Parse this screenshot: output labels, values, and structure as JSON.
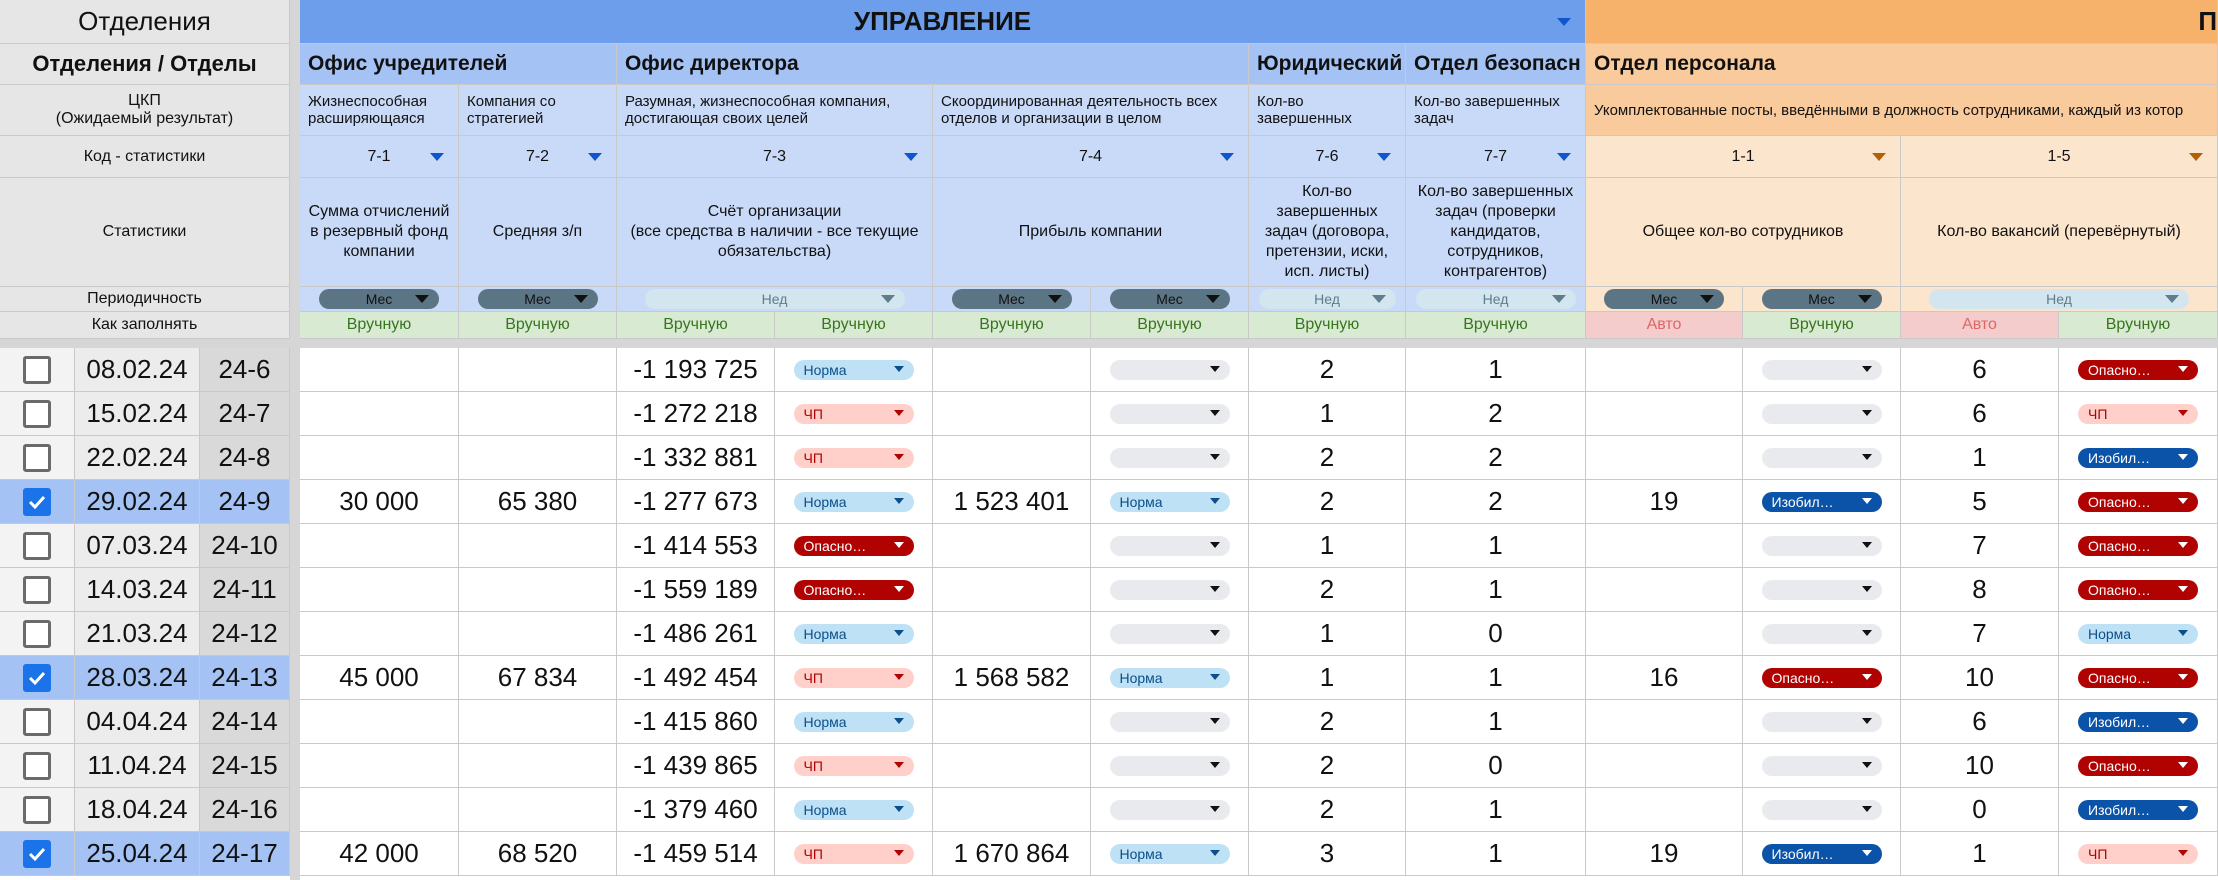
{
  "rowHeader": {
    "top": "Отделения",
    "depts": "Отделения / Отделы",
    "ckp": "ЦКП\n(Ожидаемый результат)",
    "code": "Код - статистики",
    "stats": "Статистики",
    "period": "Периодичность",
    "fill": "Как заполнять"
  },
  "banners": {
    "upravlenie": "УПРАВЛЕНИЕ",
    "next": "П"
  },
  "departments": {
    "office_founders": "Офис учредителей",
    "office_director": "Офис директора",
    "legal": "Юридический",
    "security": "Отдел безопасн",
    "personnel": "Отдел персонала"
  },
  "ckp": {
    "c1": "Жизнеспособная\nрасширяющаяся",
    "c2": "Компания со\nстратегией",
    "c3": "Разумная, жизнеспособная компания,\nдостигающая своих целей",
    "c4": "Скоординированная деятельность всех\nотделов и организации в целом",
    "c5": "Кол-во\nзавершенных",
    "c6": "Кол-во завершенных\nзадач",
    "c7": "Укомплектованные посты, введёнными в должность сотрудниками, каждый из котор"
  },
  "codes": [
    "7-1",
    "7-2",
    "7-3",
    "7-4",
    "7-6",
    "7-7",
    "1-1",
    "1-5"
  ],
  "stats": {
    "s1": "Сумма отчислений\nв резервный фонд\nкомпании",
    "s2": "Средняя з/п",
    "s3": "Счёт организации\n(все средства в наличии - все текущие\nобязательства)",
    "s4": "Прибыль компании",
    "s5": "Кол-во\nзавершенных\nзадач (договора,\nпретензии, иски,\nисп. листы)",
    "s6": "Кол-во завершенных\nзадач (проверки\nкандидатов,\nсотрудников,\nконтрагентов)",
    "s7": "Общее кол-во сотрудников",
    "s8": "Кол-во вакансий (перевёрнутый)"
  },
  "periods": {
    "mes": "Мес",
    "ned": "Нед"
  },
  "fillModes": {
    "manual": "Вручную",
    "auto": "Авто"
  },
  "colors": {
    "norma": "#bfe1f6",
    "chp": "#ffcfc9",
    "opasno": "#b10202",
    "izobil": "#0a53a8",
    "empty": "#e8eaed"
  },
  "rows": [
    {
      "checked": false,
      "date": "08.02.24",
      "week": "24-6",
      "a": "",
      "b": "",
      "c": "-1 193 725",
      "cs": "Норма",
      "d": "",
      "ds": "",
      "e": "2",
      "f": "1",
      "g": "",
      "gs": "",
      "h": "6",
      "hs": "Опасно…"
    },
    {
      "checked": false,
      "date": "15.02.24",
      "week": "24-7",
      "a": "",
      "b": "",
      "c": "-1 272 218",
      "cs": "ЧП",
      "d": "",
      "ds": "",
      "e": "1",
      "f": "2",
      "g": "",
      "gs": "",
      "h": "6",
      "hs": "ЧП"
    },
    {
      "checked": false,
      "date": "22.02.24",
      "week": "24-8",
      "a": "",
      "b": "",
      "c": "-1 332 881",
      "cs": "ЧП",
      "d": "",
      "ds": "",
      "e": "2",
      "f": "2",
      "g": "",
      "gs": "",
      "h": "1",
      "hs": "Изобил…"
    },
    {
      "checked": true,
      "date": "29.02.24",
      "week": "24-9",
      "a": "30 000",
      "b": "65 380",
      "c": "-1 277 673",
      "cs": "Норма",
      "d": "1 523 401",
      "ds": "Норма",
      "e": "2",
      "f": "2",
      "g": "19",
      "gs": "Изобил…",
      "h": "5",
      "hs": "Опасно…"
    },
    {
      "checked": false,
      "date": "07.03.24",
      "week": "24-10",
      "a": "",
      "b": "",
      "c": "-1 414 553",
      "cs": "Опасно…",
      "d": "",
      "ds": "",
      "e": "1",
      "f": "1",
      "g": "",
      "gs": "",
      "h": "7",
      "hs": "Опасно…"
    },
    {
      "checked": false,
      "date": "14.03.24",
      "week": "24-11",
      "a": "",
      "b": "",
      "c": "-1 559 189",
      "cs": "Опасно…",
      "d": "",
      "ds": "",
      "e": "2",
      "f": "1",
      "g": "",
      "gs": "",
      "h": "8",
      "hs": "Опасно…"
    },
    {
      "checked": false,
      "date": "21.03.24",
      "week": "24-12",
      "a": "",
      "b": "",
      "c": "-1 486 261",
      "cs": "Норма",
      "d": "",
      "ds": "",
      "e": "1",
      "f": "0",
      "g": "",
      "gs": "",
      "h": "7",
      "hs": "Норма"
    },
    {
      "checked": true,
      "date": "28.03.24",
      "week": "24-13",
      "a": "45 000",
      "b": "67 834",
      "c": "-1 492 454",
      "cs": "ЧП",
      "d": "1 568 582",
      "ds": "Норма",
      "e": "1",
      "f": "1",
      "g": "16",
      "gs": "Опасно…",
      "h": "10",
      "hs": "Опасно…"
    },
    {
      "checked": false,
      "date": "04.04.24",
      "week": "24-14",
      "a": "",
      "b": "",
      "c": "-1 415 860",
      "cs": "Норма",
      "d": "",
      "ds": "",
      "e": "2",
      "f": "1",
      "g": "",
      "gs": "",
      "h": "6",
      "hs": "Изобил…"
    },
    {
      "checked": false,
      "date": "11.04.24",
      "week": "24-15",
      "a": "",
      "b": "",
      "c": "-1 439 865",
      "cs": "ЧП",
      "d": "",
      "ds": "",
      "e": "2",
      "f": "0",
      "g": "",
      "gs": "",
      "h": "10",
      "hs": "Опасно…"
    },
    {
      "checked": false,
      "date": "18.04.24",
      "week": "24-16",
      "a": "",
      "b": "",
      "c": "-1 379 460",
      "cs": "Норма",
      "d": "",
      "ds": "",
      "e": "2",
      "f": "1",
      "g": "",
      "gs": "",
      "h": "0",
      "hs": "Изобил…"
    },
    {
      "checked": true,
      "date": "25.04.24",
      "week": "24-17",
      "a": "42 000",
      "b": "68 520",
      "c": "-1 459 514",
      "cs": "ЧП",
      "d": "1 670 864",
      "ds": "Норма",
      "e": "3",
      "f": "1",
      "g": "19",
      "gs": "Изобил…",
      "h": "1",
      "hs": "ЧП"
    }
  ]
}
